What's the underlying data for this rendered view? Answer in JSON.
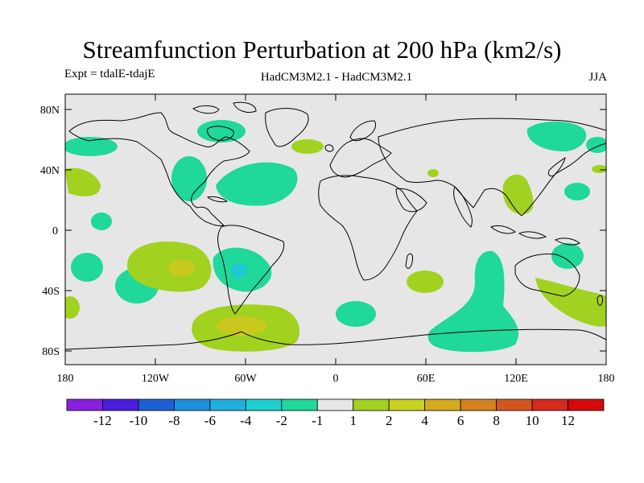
{
  "title": "Streamfunction Perturbation at 200 hPa (km2/s)",
  "experiment": "Expt = tdalE-tdajE",
  "models": "HadCM3M2.1 - HadCM3M2.1",
  "season": "JJA",
  "lat_labels": [
    "80N",
    "40N",
    "0",
    "40S",
    "80S"
  ],
  "lon_labels": [
    "180",
    "120W",
    "60W",
    "0",
    "60E",
    "120E",
    "180"
  ],
  "colorbar": {
    "labels": [
      "-12",
      "-10",
      "-8",
      "-6",
      "-4",
      "-2",
      "-1",
      "1",
      "2",
      "4",
      "6",
      "8",
      "10",
      "12"
    ],
    "colors": [
      "#8a1fe0",
      "#4a1fe0",
      "#1f5fd6",
      "#1f8fe0",
      "#1fb0e0",
      "#1fd0d0",
      "#1fd89a",
      "#e6e6e6",
      "#a0d21f",
      "#c8d21f",
      "#d4aa1f",
      "#d4821f",
      "#d4561f",
      "#d42a1f",
      "#d40a0a"
    ]
  },
  "map_colors": {
    "background": "#e6e6e6",
    "neg1": "#1fd89a",
    "neg2": "#1fc8c8",
    "pos1": "#a0d21f",
    "pos2": "#c8c81f",
    "coast": "#000000"
  }
}
